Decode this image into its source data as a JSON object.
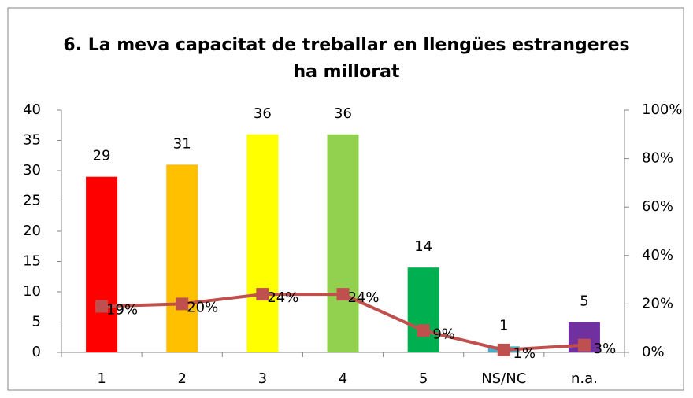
{
  "chart_data": {
    "type": "bar",
    "title": [
      "6. La meva capacitat de treballar en llengües estrangeres",
      "ha millorat"
    ],
    "categories": [
      "1",
      "2",
      "3",
      "4",
      "5",
      "NS/NC",
      "n.a."
    ],
    "series": [
      {
        "type": "bar",
        "colors": [
          "#ff0000",
          "#ffc000",
          "#ffff00",
          "#92d050",
          "#00b050",
          "#4bacc6",
          "#7030a0"
        ],
        "values": [
          29,
          31,
          36,
          36,
          14,
          1,
          5
        ]
      },
      {
        "type": "line",
        "axis": "y2",
        "color": "#c0504d",
        "values": [
          19,
          20,
          24,
          24,
          9,
          1,
          3
        ],
        "value_labels": [
          "19%",
          "20%",
          "24%",
          "24%",
          "9%",
          "1%",
          "3%"
        ]
      }
    ],
    "ylim": [
      0,
      40
    ],
    "yticks": [
      0,
      5,
      10,
      15,
      20,
      25,
      30,
      35,
      40
    ],
    "y2lim": [
      0,
      100
    ],
    "y2ticks": [
      {
        "value": 0,
        "label": "0%"
      },
      {
        "value": 20,
        "label": "20%"
      },
      {
        "value": 40,
        "label": "40%"
      },
      {
        "value": 60,
        "label": "60%"
      },
      {
        "value": 80,
        "label": "80%"
      },
      {
        "value": 100,
        "label": "100%"
      }
    ]
  }
}
